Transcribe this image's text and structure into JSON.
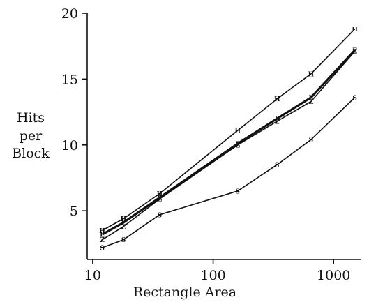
{
  "chart_data": {
    "type": "line",
    "xscale": "log",
    "xlim": [
      9,
      1700
    ],
    "ylim": [
      1.3,
      20
    ],
    "xticks": [
      10,
      100,
      1000
    ],
    "xtick_labels": [
      "10",
      "100",
      "1000"
    ],
    "yticks": [
      5,
      10,
      15,
      20
    ],
    "ytick_labels": [
      "5",
      "10",
      "15",
      "20"
    ],
    "xlabel": "Rectangle Area",
    "ylabel": [
      "Hits",
      "per",
      "Block"
    ],
    "series": [
      {
        "marker": "H",
        "stroke_width": 1.6,
        "x": [
          12,
          18,
          36,
          160,
          340,
          650,
          1500
        ],
        "y": [
          3.5,
          4.4,
          6.3,
          11.1,
          13.5,
          15.4,
          18.8
        ]
      },
      {
        "marker": "E",
        "stroke_width": 3.2,
        "x": [
          12,
          18,
          36,
          160,
          340,
          650,
          1500
        ],
        "y": [
          3.2,
          4.1,
          6.0,
          10.1,
          12.0,
          13.6,
          17.2
        ]
      },
      {
        "marker": "Z",
        "stroke_width": 1.6,
        "x": [
          12,
          18,
          36,
          160,
          340,
          650,
          1500
        ],
        "y": [
          2.8,
          3.8,
          5.9,
          10.0,
          11.8,
          13.3,
          17.1
        ]
      },
      {
        "marker": "S",
        "stroke_width": 1.6,
        "x": [
          12,
          18,
          36,
          160,
          340,
          650,
          1500
        ],
        "y": [
          2.2,
          2.8,
          4.7,
          6.5,
          8.5,
          10.4,
          13.6
        ]
      }
    ]
  }
}
